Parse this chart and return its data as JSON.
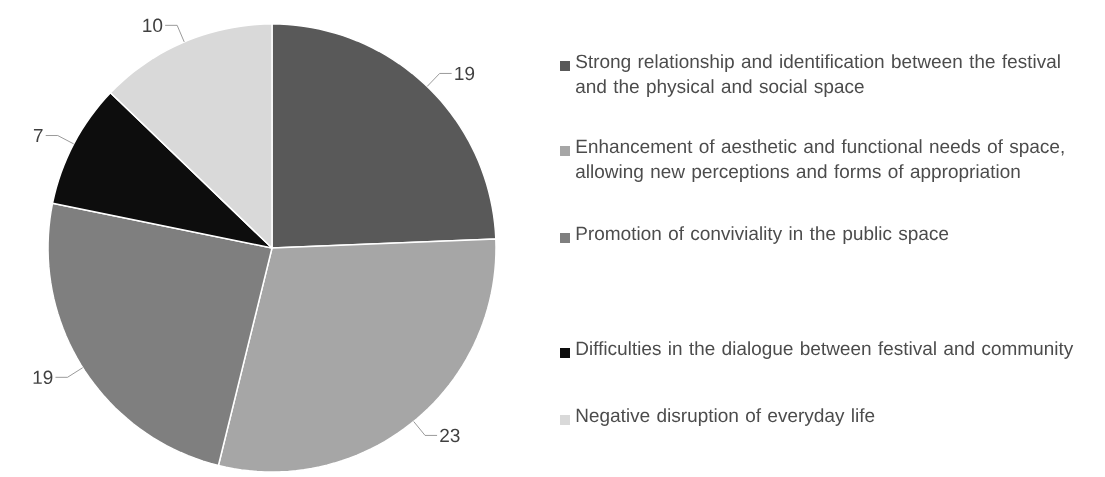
{
  "chart_data": {
    "type": "pie",
    "categories": [
      "Strong relationship and identification between the festival and the physical and social space",
      "Enhancement of aesthetic and functional needs of space, allowing new perceptions and forms of appropriation",
      "Promotion of conviviality in the public space",
      "Difficulties in the dialogue between festival and community",
      "Negative disruption of everyday life"
    ],
    "values": [
      19,
      23,
      19,
      7,
      10
    ],
    "colors": [
      "#595959",
      "#a6a6a6",
      "#7f7f7f",
      "#0d0d0d",
      "#d9d9d9"
    ],
    "data_labels": true,
    "legend": "right"
  }
}
